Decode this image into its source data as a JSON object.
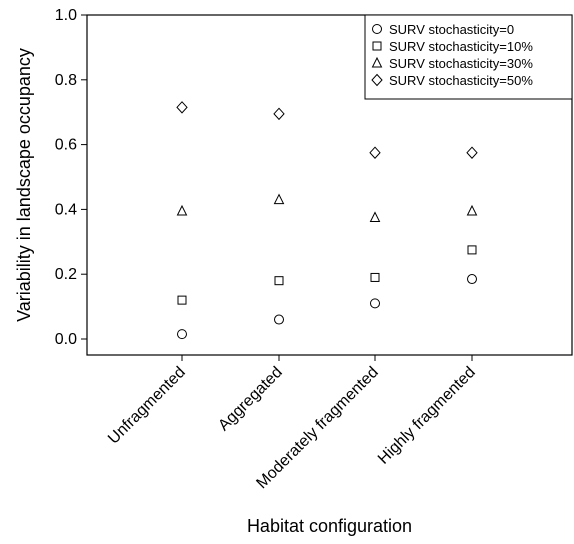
{
  "chart_data": {
    "type": "scatter",
    "title": "",
    "xlabel": "Habitat configuration",
    "ylabel": "Variability in landscape occupancy",
    "categories": [
      "Unfragmented",
      "Aggregated",
      "Moderately fragmented",
      "Highly fragmented"
    ],
    "ylim": [
      -0.05,
      1.0
    ],
    "yticks": [
      "0.0",
      "0.2",
      "0.4",
      "0.6",
      "0.8",
      "1.0"
    ],
    "grid": false,
    "legend_position": "top-right",
    "series": [
      {
        "name": "SURV stochasticity=0",
        "marker": "circle",
        "values": [
          0.015,
          0.06,
          0.11,
          0.185
        ]
      },
      {
        "name": "SURV stochasticity=10%",
        "marker": "square",
        "values": [
          0.12,
          0.18,
          0.19,
          0.275
        ]
      },
      {
        "name": "SURV stochasticity=30%",
        "marker": "triangle",
        "values": [
          0.395,
          0.43,
          0.375,
          0.395
        ]
      },
      {
        "name": "SURV stochasticity=50%",
        "marker": "diamond",
        "values": [
          0.715,
          0.695,
          0.575,
          0.575
        ]
      }
    ]
  }
}
